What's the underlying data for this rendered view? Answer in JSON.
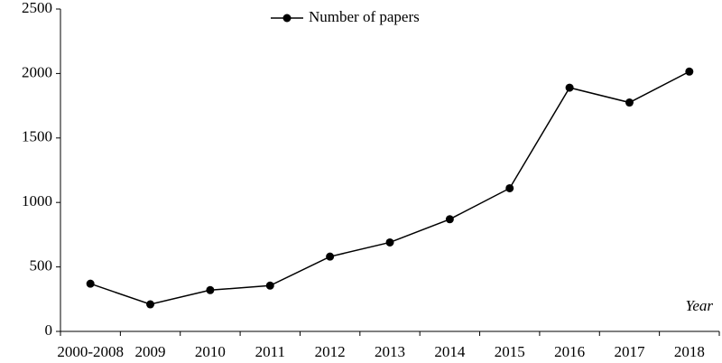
{
  "chart_data": {
    "type": "line",
    "categories": [
      "2000-2008",
      "2009",
      "2010",
      "2011",
      "2012",
      "2013",
      "2014",
      "2015",
      "2016",
      "2017",
      "2018"
    ],
    "series": [
      {
        "name": "Number of papers",
        "color": "#000000",
        "values": [
          370,
          210,
          320,
          355,
          580,
          690,
          870,
          1110,
          1890,
          1775,
          2015
        ]
      }
    ],
    "x_label": "Year",
    "ylim": [
      0,
      2500
    ],
    "yticks": [
      0,
      500,
      1000,
      1500,
      2000,
      2500
    ],
    "grid": false,
    "legend": "top"
  }
}
